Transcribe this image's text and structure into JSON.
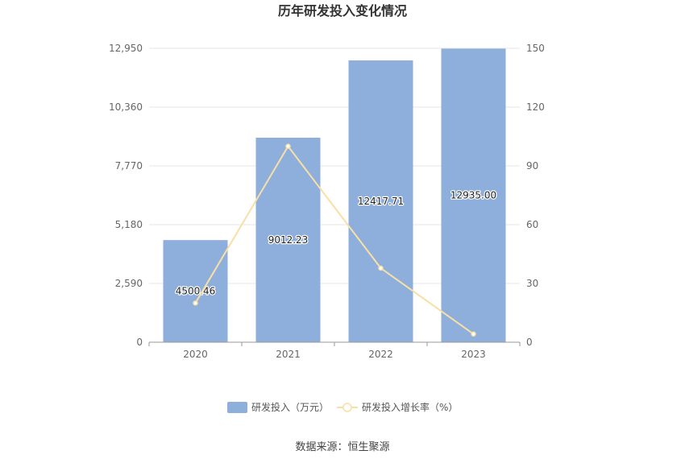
{
  "chart_data": {
    "type": "bar",
    "title": "历年研发投入变化情况",
    "categories": [
      "2020",
      "2021",
      "2022",
      "2023"
    ],
    "series": [
      {
        "name": "研发投入（万元）",
        "type": "bar",
        "axis": "left",
        "values": [
          4500.46,
          9012.23,
          12417.71,
          12935.0
        ],
        "labels": [
          "4500.46",
          "9012.23",
          "12417.71",
          "12935.00"
        ],
        "color": "#8eafdb"
      },
      {
        "name": "研发投入增长率（%）",
        "type": "line",
        "axis": "right",
        "values": [
          20,
          100,
          37.8,
          4.2
        ],
        "color": "#f8dfa6"
      }
    ],
    "y_left": {
      "min": 0,
      "max": 12950,
      "ticks": [
        0,
        2590,
        5180,
        7770,
        10360,
        12950
      ],
      "tick_labels": [
        "0",
        "2,590",
        "5,180",
        "7,770",
        "10,360",
        "12,950"
      ]
    },
    "y_right": {
      "min": 0,
      "max": 150,
      "ticks": [
        0,
        30,
        60,
        90,
        120,
        150
      ],
      "tick_labels": [
        "0",
        "30",
        "60",
        "90",
        "120",
        "150"
      ]
    },
    "grid": true,
    "legend_position": "bottom",
    "source": "数据来源：恒生聚源"
  }
}
